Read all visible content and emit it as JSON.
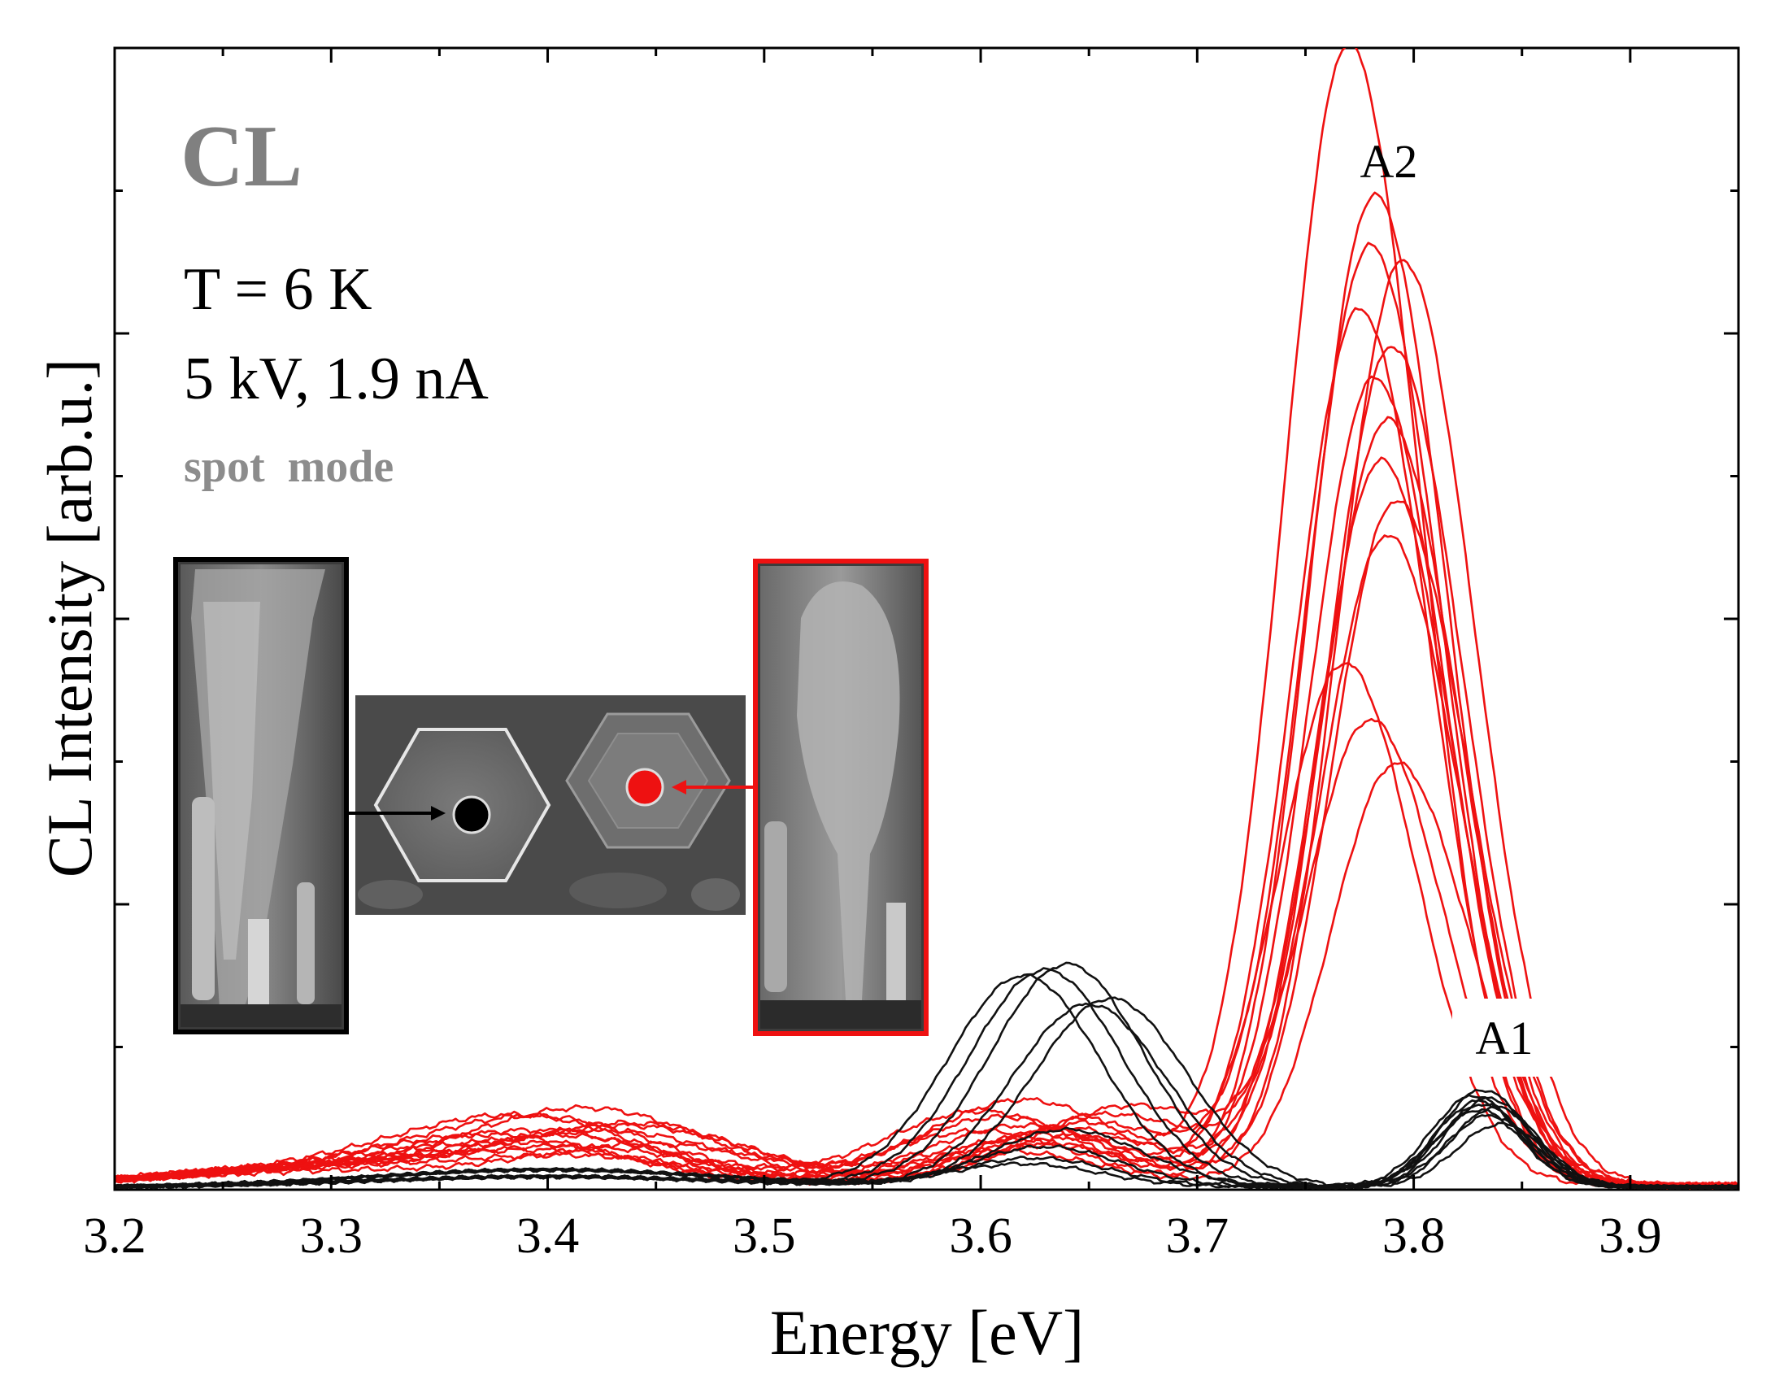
{
  "chart_data": {
    "type": "line",
    "title": "",
    "xlabel": "Energy [eV]",
    "ylabel": "CL Intensity [arb.u.]",
    "xlim": [
      3.2,
      3.95
    ],
    "ylim": [
      0,
      4.0
    ],
    "x_ticks": [
      "3.2",
      "3.3",
      "3.4",
      "3.5",
      "3.6",
      "3.7",
      "3.8",
      "3.9"
    ],
    "y_tick_labels_shown": false,
    "grid": false,
    "legend": "none",
    "annotations": {
      "panel_label": "CL",
      "temperature": "T = 6 K",
      "beam": "5 kV, 1.9 nA",
      "mode": "spot  mode",
      "peak_a2": "A2",
      "peak_a1": "A1"
    },
    "colors": {
      "red_spectra": "#ee1111",
      "black_spectra": "#111111",
      "panel_label": "#808080",
      "mode_text": "#8c8c8c"
    },
    "series_groups": [
      {
        "color_key": "red_spectra",
        "description_of_shape": "strong A2 peak near 3.77-3.80 eV, weak bands near 3.40 and 3.62 eV",
        "series": [
          {
            "values": {
              "A2": [
                3.77,
                4.0
              ],
              "bandD": [
                3.62,
                0.3
              ],
              "bandB": [
                3.42,
                0.26
              ]
            }
          },
          {
            "values": {
              "A2": [
                3.782,
                3.47
              ],
              "bandD": [
                3.6,
                0.26
              ],
              "bandB": [
                3.4,
                0.22
              ]
            }
          },
          {
            "values": {
              "A2": [
                3.78,
                3.29
              ],
              "bandD": [
                3.65,
                0.22
              ],
              "bandB": [
                3.44,
                0.2
              ]
            }
          },
          {
            "values": {
              "A2": [
                3.795,
                3.24
              ],
              "bandD": [
                3.63,
                0.18
              ],
              "bandB": [
                3.41,
                0.16
              ]
            }
          },
          {
            "values": {
              "A2": [
                3.775,
                3.07
              ],
              "bandD": [
                3.61,
                0.24
              ],
              "bandB": [
                3.39,
                0.22
              ]
            }
          },
          {
            "values": {
              "A2": [
                3.79,
                2.94
              ],
              "bandD": [
                3.64,
                0.2
              ],
              "bandB": [
                3.43,
                0.18
              ]
            }
          },
          {
            "values": {
              "A2": [
                3.782,
                2.83
              ],
              "bandD": [
                3.62,
                0.16
              ],
              "bandB": [
                3.45,
                0.14
              ]
            }
          },
          {
            "values": {
              "A2": [
                3.788,
                2.68
              ],
              "bandD": [
                3.66,
                0.25
              ],
              "bandB": [
                3.4,
                0.17
              ]
            }
          },
          {
            "values": {
              "A2": [
                3.785,
                2.54
              ],
              "bandD": [
                3.6,
                0.19
              ],
              "bandB": [
                3.42,
                0.12
              ]
            }
          },
          {
            "values": {
              "A2": [
                3.792,
                2.4
              ],
              "bandD": [
                3.63,
                0.14
              ],
              "bandB": [
                3.38,
                0.15
              ]
            }
          },
          {
            "values": {
              "A2": [
                3.788,
                2.27
              ],
              "bandD": [
                3.67,
                0.28
              ],
              "bandB": [
                3.44,
                0.21
              ]
            }
          },
          {
            "values": {
              "A2": [
                3.768,
                1.83
              ],
              "bandD": [
                3.62,
                0.21
              ],
              "bandB": [
                3.41,
                0.1
              ]
            }
          },
          {
            "values": {
              "A2": [
                3.78,
                1.63
              ],
              "bandD": [
                3.65,
                0.17
              ],
              "bandB": [
                3.39,
                0.13
              ]
            }
          },
          {
            "values": {
              "A2": [
                3.792,
                1.48
              ],
              "bandD": [
                3.61,
                0.12
              ],
              "bandB": [
                3.42,
                0.09
              ]
            }
          }
        ]
      },
      {
        "color_key": "black_spectra",
        "description_of_shape": "band near 3.62-3.66 eV and A1 peak near 3.83 eV",
        "series": [
          {
            "values": {
              "bandD": [
                3.63,
                0.76
              ],
              "A1": [
                3.832,
                0.34
              ]
            }
          },
          {
            "values": {
              "bandD": [
                3.64,
                0.78
              ],
              "A1": [
                3.828,
                0.32
              ]
            }
          },
          {
            "values": {
              "bandD": [
                3.62,
                0.74
              ],
              "A1": [
                3.835,
                0.31
              ]
            }
          },
          {
            "values": {
              "bandD": [
                3.66,
                0.66
              ],
              "A1": [
                3.83,
                0.3
              ]
            }
          },
          {
            "values": {
              "bandD": [
                3.65,
                0.64
              ],
              "A1": [
                3.838,
                0.28
              ]
            }
          },
          {
            "values": {
              "bandD": [
                3.64,
                0.2
              ],
              "A1": [
                3.83,
                0.27
              ]
            }
          },
          {
            "values": {
              "bandD": [
                3.63,
                0.14
              ],
              "A1": [
                3.835,
                0.25
              ]
            }
          },
          {
            "values": {
              "bandD": [
                3.625,
                0.1
              ],
              "A1": [
                3.84,
                0.22
              ]
            }
          },
          {
            "values": {
              "bandD": [
                3.62,
                0.08
              ],
              "A1": [
                3.832,
                0.29
              ]
            }
          }
        ]
      }
    ]
  },
  "insets": {
    "left_image": "cross-section SEM image of nanowire (black frame)",
    "center_image": "top-view SEM image of hexagonal nanowires with black and red excitation spots",
    "right_image": "cross-section SEM image of nanowire (red frame)"
  }
}
